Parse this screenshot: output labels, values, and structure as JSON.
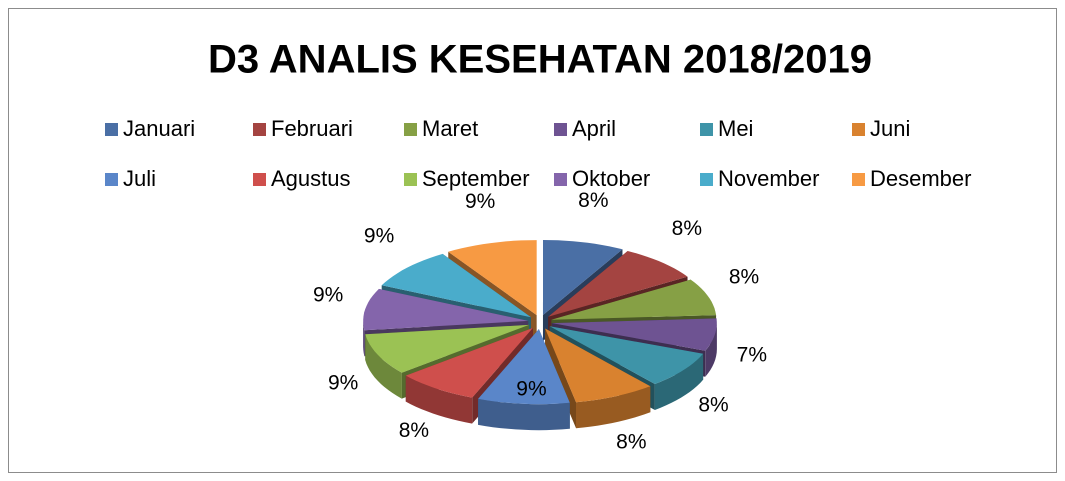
{
  "chart_data": {
    "type": "pie3d",
    "title": "D3 ANALIS KESEHATAN 2018/2019",
    "categories": [
      "Januari",
      "Februari",
      "Maret",
      "April",
      "Mei",
      "Juni",
      "Juli",
      "Agustus",
      "September",
      "Oktober",
      "November",
      "Desember"
    ],
    "values": [
      8,
      8,
      8,
      7,
      8,
      8,
      9,
      8,
      9,
      9,
      9,
      9
    ],
    "value_labels": [
      "8%",
      "8%",
      "8%",
      "7%",
      "8%",
      "8%",
      "9%",
      "8%",
      "9%",
      "9%",
      "9%",
      "9%"
    ],
    "colors": [
      "#4a6fa5",
      "#a44441",
      "#86a045",
      "#6e5392",
      "#3e94a8",
      "#d9822f",
      "#5a86c9",
      "#cf4f4c",
      "#9bc254",
      "#8465ab",
      "#4aaccb",
      "#f79a43"
    ],
    "legend": "top"
  }
}
